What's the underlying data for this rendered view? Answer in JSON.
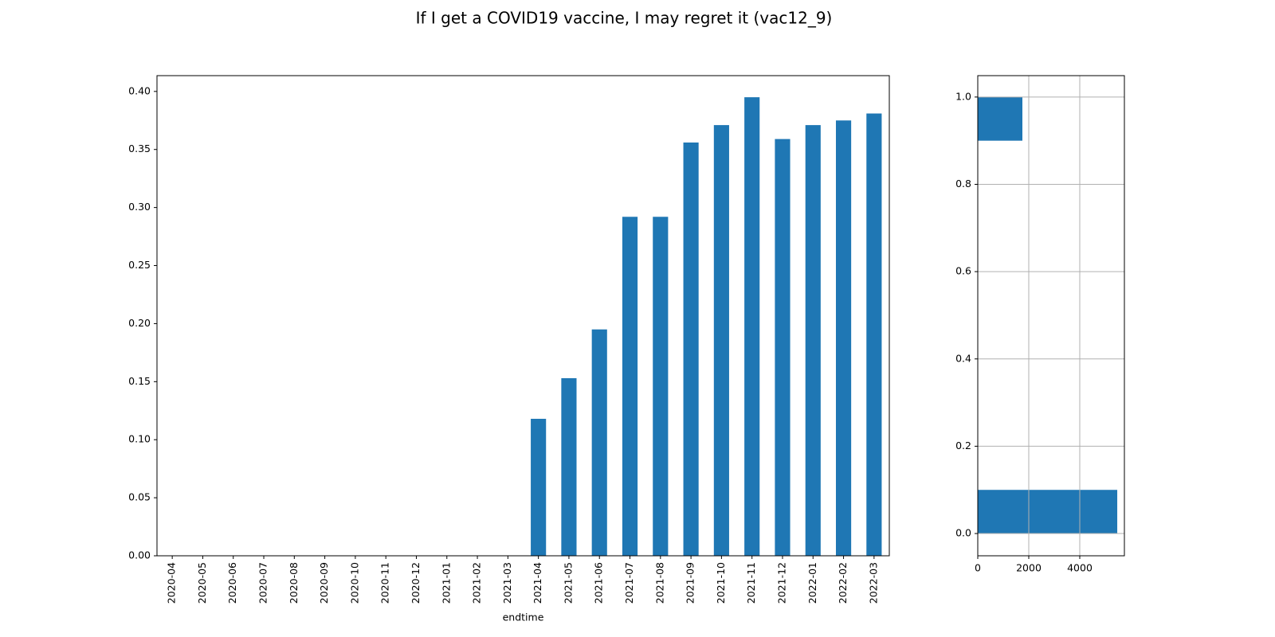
{
  "chart_data": [
    {
      "type": "bar",
      "title": "If I get a COVID19 vaccine, I may regret it (vac12_9)",
      "xlabel": "endtime",
      "categories": [
        "2020-04",
        "2020-05",
        "2020-06",
        "2020-07",
        "2020-08",
        "2020-09",
        "2020-10",
        "2020-11",
        "2020-12",
        "2021-01",
        "2021-02",
        "2021-03",
        "2021-04",
        "2021-05",
        "2021-06",
        "2021-07",
        "2021-08",
        "2021-09",
        "2021-10",
        "2021-11",
        "2021-12",
        "2022-01",
        "2022-02",
        "2022-03"
      ],
      "values": [
        null,
        null,
        null,
        null,
        null,
        null,
        null,
        null,
        null,
        null,
        null,
        null,
        0.118,
        0.153,
        0.195,
        0.292,
        0.292,
        0.356,
        0.371,
        0.395,
        0.359,
        0.371,
        0.375,
        0.381
      ],
      "color": "#1f77b4",
      "ylim": [
        0,
        0.4136
      ],
      "yticks": [
        {
          "value": 0,
          "label": "0.00"
        },
        {
          "value": 0.05,
          "label": "0.05"
        },
        {
          "value": 0.1,
          "label": "0.10"
        },
        {
          "value": 0.15,
          "label": "0.15"
        },
        {
          "value": 0.2,
          "label": "0.20"
        },
        {
          "value": 0.25,
          "label": "0.25"
        },
        {
          "value": 0.3,
          "label": "0.30"
        },
        {
          "value": 0.35,
          "label": "0.35"
        },
        {
          "value": 0.4,
          "label": "0.40"
        }
      ],
      "grid": false
    },
    {
      "type": "histogram",
      "orientation": "horizontal",
      "bins": [
        0,
        0.1,
        0.2,
        0.3,
        0.4,
        0.5,
        0.6,
        0.7,
        0.8,
        0.9,
        1.0
      ],
      "values": [
        5470,
        0,
        0,
        0,
        0,
        0,
        0,
        0,
        0,
        1750
      ],
      "color": "#1f77b4",
      "xlim": [
        0,
        5750
      ],
      "xticks": [
        0,
        2000,
        4000
      ],
      "ylim": [
        -0.051,
        1.049
      ],
      "yticks": [
        {
          "value": 0,
          "label": "0.0"
        },
        {
          "value": 0.2,
          "label": "0.2"
        },
        {
          "value": 0.4,
          "label": "0.4"
        },
        {
          "value": 0.6,
          "label": "0.6"
        },
        {
          "value": 0.8,
          "label": "0.8"
        },
        {
          "value": 1.0,
          "label": "1.0"
        }
      ],
      "grid": true
    }
  ]
}
